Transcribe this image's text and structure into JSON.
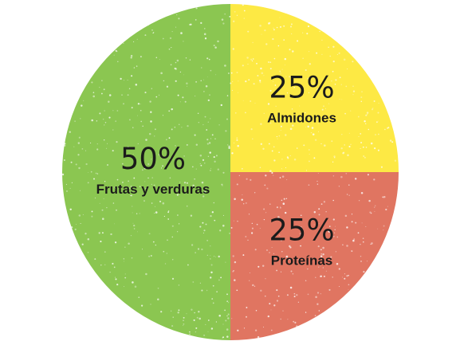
{
  "chart_data": {
    "type": "pie",
    "title": "",
    "slices": [
      {
        "label": "Almidones",
        "value": 25,
        "display": "25%",
        "color": "#FDE944"
      },
      {
        "label": "Proteínas",
        "value": 25,
        "display": "25%",
        "color": "#E07561"
      },
      {
        "label": "Frutas y verduras",
        "value": 50,
        "display": "50%",
        "color": "#8BC651"
      }
    ],
    "start_angle_deg": 0,
    "direction": "clockwise",
    "legend": "none"
  }
}
